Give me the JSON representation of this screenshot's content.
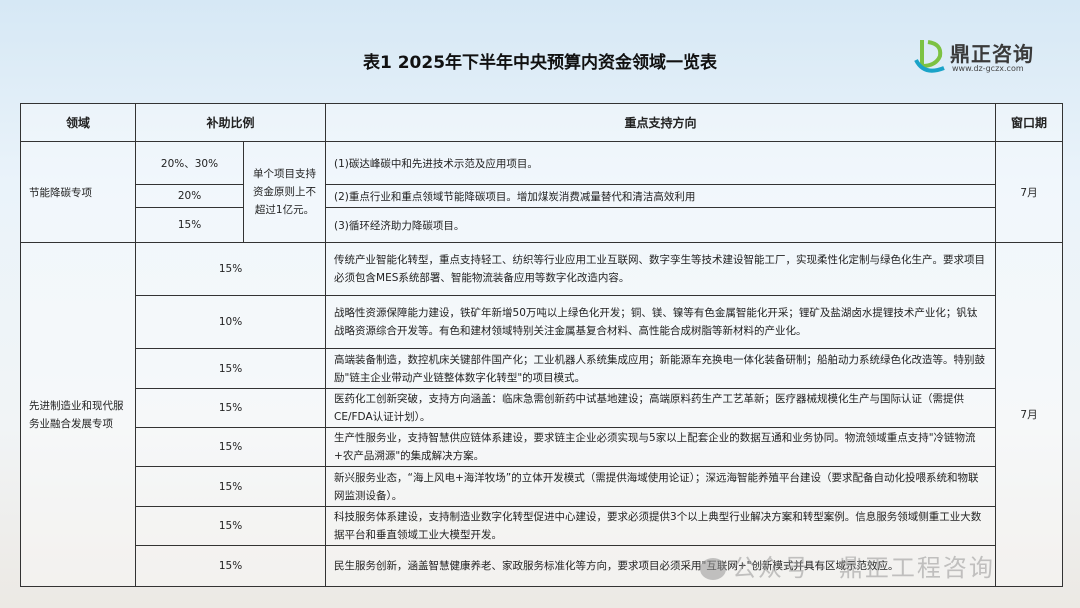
{
  "title": "表1  2025年下半年中央预算内资金领域一览表",
  "logo": {
    "name": "鼎正咨询",
    "url": "www.dz-gczx.com"
  },
  "headers": [
    "领域",
    "补助比例",
    "重点支持方向",
    "窗口期"
  ],
  "section1": {
    "domain": "节能降碳专项",
    "note": "单个项目支持资金原则上不超过1亿元。",
    "window": "7月",
    "rows": [
      {
        "ratio": "20%、30%",
        "text": "(1)碳达峰碳中和先进技术示范及应用项目。"
      },
      {
        "ratio": "20%",
        "text": "(2)重点行业和重点领域节能降碳项目。增加煤炭消费减量替代和清洁高效利用"
      },
      {
        "ratio": "15%",
        "text": "(3)循环经济助力降碳项目。"
      }
    ]
  },
  "section2": {
    "domain": "先进制造业和现代服务业融合发展专项",
    "window": "7月",
    "rows": [
      {
        "ratio": "15%",
        "text": "传统产业智能化转型，重点支持轻工、纺织等行业应用工业互联网、数字孪生等技术建设智能工厂，实现柔性化定制与绿色化生产。要求项目必须包含MES系统部署、智能物流装备应用等数字化改造内容。"
      },
      {
        "ratio": "10%",
        "text": "战略性资源保障能力建设，铁矿年新增50万吨以上绿色化开发；铜、镁、镍等有色金属智能化开采；锂矿及盐湖卤水提锂技术产业化；钒钛战略资源综合开发等。有色和建材领域特别关注金属基复合材料、高性能合成树脂等新材料的产业化。"
      },
      {
        "ratio": "15%",
        "text": "高端装备制造，数控机床关键部件国产化；工业机器人系统集成应用；新能源车充换电一体化装备研制；船舶动力系统绿色化改造等。特别鼓励\"链主企业带动产业链整体数字化转型\"的项目模式。"
      },
      {
        "ratio": "15%",
        "text": "医药化工创新突破，支持方向涵盖：临床急需创新药中试基地建设；高端原料药生产工艺革新；医疗器械规模化生产与国际认证（需提供CE/FDA认证计划）。"
      },
      {
        "ratio": "15%",
        "text": "生产性服务业，支持智慧供应链体系建设，要求链主企业必须实现与5家以上配套企业的数据互通和业务协同。物流领域重点支持\"冷链物流+农产品溯源\"的集成解决方案。"
      },
      {
        "ratio": "15%",
        "text": "新兴服务业态，“海上风电+海洋牧场”的立体开发模式（需提供海域使用论证）；深远海智能养殖平台建设（要求配备自动化投喂系统和物联网监测设备）。"
      },
      {
        "ratio": "15%",
        "text": "科技服务体系建设，支持制造业数字化转型促进中心建设，要求必须提供3个以上典型行业解决方案和转型案例。信息服务领域侧重工业大数据平台和垂直领域工业大模型开发。"
      },
      {
        "ratio": "15%",
        "text": "民生服务创新，涵盖智慧健康养老、家政服务标准化等方向，要求项目必须采用\"互联网+\"创新模式并具有区域示范效应。"
      }
    ]
  },
  "watermark": "公众号 · 鼎正工程咨询"
}
